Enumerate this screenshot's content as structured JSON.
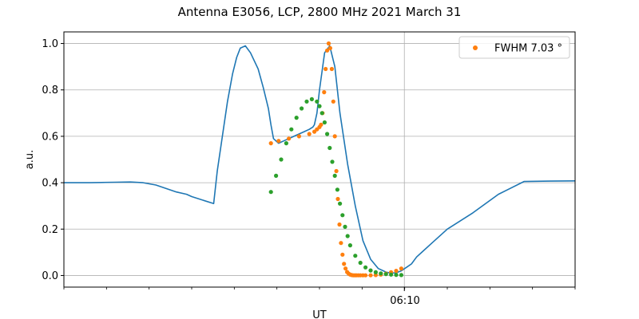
{
  "chart_data": {
    "type": "line",
    "title": "Antenna E3056, LCP, 2800 MHz 2021 March 31",
    "xlabel": "UT",
    "ylabel": "a.u.",
    "x_major_tick_label": "06:10",
    "ylim": [
      -0.05,
      1.05
    ],
    "y_ticks": [
      0.0,
      0.2,
      0.4,
      0.6,
      0.8,
      1.0
    ],
    "y_tick_labels": [
      "0.0",
      "0.2",
      "0.4",
      "0.6",
      "0.8",
      "1.0"
    ],
    "grid": true,
    "legend_position": "top-right",
    "legend_label": "FWHM 7.03$^\\circ$",
    "legend_text": "FWHM 7.03 °",
    "series": [
      {
        "role": "measured signal",
        "style": "line",
        "color": "#1f77b4",
        "x": [
          0.0,
          0.05,
          0.1,
          0.13,
          0.155,
          0.18,
          0.2,
          0.22,
          0.24,
          0.25,
          0.293,
          0.3,
          0.31,
          0.32,
          0.33,
          0.338,
          0.345,
          0.355,
          0.365,
          0.38,
          0.39,
          0.4,
          0.405,
          0.41,
          0.42,
          0.43,
          0.44,
          0.45,
          0.46,
          0.47,
          0.48,
          0.487,
          0.49,
          0.495,
          0.5,
          0.51,
          0.52,
          0.53,
          0.54,
          0.555,
          0.57,
          0.585,
          0.6,
          0.615,
          0.63,
          0.64,
          0.65,
          0.66,
          0.67,
          0.68,
          0.69,
          0.7,
          0.72,
          0.75,
          0.8,
          0.85,
          0.9,
          0.95,
          1.0
        ],
        "y": [
          0.4,
          0.4,
          0.402,
          0.403,
          0.4,
          0.39,
          0.375,
          0.36,
          0.35,
          0.34,
          0.31,
          0.45,
          0.6,
          0.75,
          0.87,
          0.94,
          0.98,
          0.99,
          0.96,
          0.89,
          0.81,
          0.72,
          0.65,
          0.59,
          0.57,
          0.58,
          0.59,
          0.6,
          0.61,
          0.62,
          0.63,
          0.64,
          0.65,
          0.7,
          0.8,
          0.96,
          0.99,
          0.9,
          0.7,
          0.48,
          0.3,
          0.15,
          0.07,
          0.03,
          0.015,
          0.01,
          0.012,
          0.02,
          0.035,
          0.05,
          0.08,
          0.1,
          0.14,
          0.2,
          0.27,
          0.35,
          0.405,
          0.407,
          0.408
        ]
      },
      {
        "role": "orange fit",
        "style": "markers",
        "color": "#ff7f0e",
        "x": [
          0.405,
          0.42,
          0.44,
          0.46,
          0.48,
          0.49,
          0.495,
          0.5,
          0.503,
          0.506,
          0.509,
          0.512,
          0.515,
          0.518,
          0.521,
          0.524,
          0.527,
          0.53,
          0.533,
          0.536,
          0.539,
          0.542,
          0.545,
          0.548,
          0.551,
          0.554,
          0.557,
          0.56,
          0.563,
          0.566,
          0.569,
          0.572,
          0.576,
          0.58,
          0.585,
          0.59,
          0.6,
          0.61,
          0.62,
          0.63,
          0.64,
          0.65,
          0.66
        ],
        "y": [
          0.57,
          0.58,
          0.59,
          0.6,
          0.61,
          0.62,
          0.63,
          0.64,
          0.65,
          0.7,
          0.79,
          0.89,
          0.97,
          1.0,
          0.98,
          0.89,
          0.75,
          0.6,
          0.45,
          0.33,
          0.22,
          0.14,
          0.09,
          0.05,
          0.03,
          0.015,
          0.008,
          0.004,
          0.002,
          0.001,
          0.001,
          0.001,
          0.001,
          0.001,
          0.001,
          0.001,
          0.001,
          0.002,
          0.004,
          0.008,
          0.014,
          0.02,
          0.03
        ]
      },
      {
        "role": "green fit",
        "style": "markers",
        "color": "#2ca02c",
        "x": [
          0.405,
          0.415,
          0.425,
          0.435,
          0.445,
          0.455,
          0.465,
          0.475,
          0.485,
          0.495,
          0.5,
          0.505,
          0.51,
          0.515,
          0.52,
          0.525,
          0.53,
          0.535,
          0.54,
          0.545,
          0.55,
          0.555,
          0.56,
          0.57,
          0.58,
          0.59,
          0.6,
          0.61,
          0.62,
          0.63,
          0.64,
          0.65,
          0.66
        ],
        "y": [
          0.36,
          0.43,
          0.5,
          0.57,
          0.63,
          0.68,
          0.72,
          0.75,
          0.76,
          0.75,
          0.73,
          0.7,
          0.66,
          0.61,
          0.55,
          0.49,
          0.43,
          0.37,
          0.31,
          0.26,
          0.21,
          0.17,
          0.13,
          0.085,
          0.055,
          0.035,
          0.022,
          0.014,
          0.009,
          0.006,
          0.004,
          0.003,
          0.002
        ]
      }
    ]
  }
}
